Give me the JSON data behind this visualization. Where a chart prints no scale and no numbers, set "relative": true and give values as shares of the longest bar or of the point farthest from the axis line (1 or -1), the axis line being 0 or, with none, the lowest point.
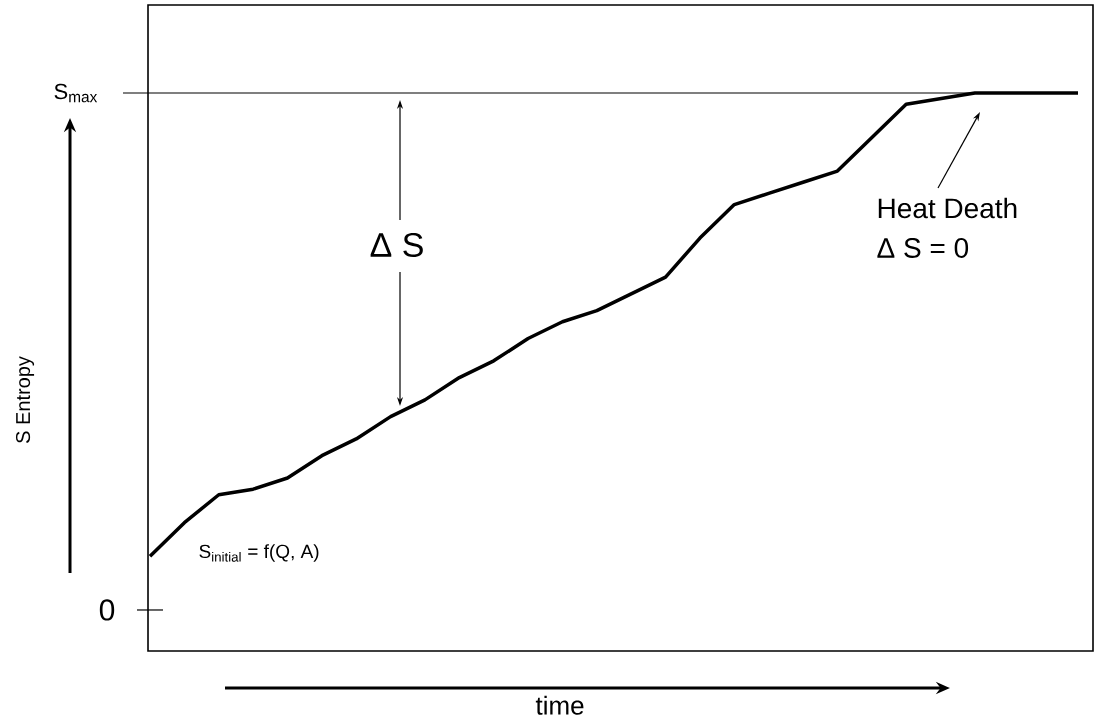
{
  "chart_data": {
    "type": "line",
    "relative": true,
    "color": "#000000",
    "line_style": "solid",
    "xlabel": "time",
    "categories": [
      null,
      null,
      null,
      null,
      null,
      null,
      null,
      null,
      null,
      null,
      null,
      null,
      null,
      null,
      null,
      null,
      null,
      null,
      null,
      null,
      null,
      null,
      null,
      null,
      null,
      null,
      null,
      null
    ],
    "values": [
      0.17,
      0.23,
      0.28,
      0.29,
      0.31,
      0.35,
      0.38,
      0.42,
      0.45,
      0.49,
      0.52,
      0.56,
      0.59,
      0.61,
      0.64,
      0.67,
      0.74,
      0.8,
      0.82,
      0.84,
      0.86,
      0.92,
      0.98,
      0.99,
      1,
      1,
      1,
      1
    ],
    "ref_lines": [
      {
        "axis": "y",
        "value": 1,
        "label": "S$_{max}$"
      }
    ],
    "annotations": [
      "0",
      "Δ S",
      "Heat Death",
      "Δ S  = 0",
      "S$_{initial}$ = f(Q, A)",
      "S  Entropy"
    ]
  }
}
